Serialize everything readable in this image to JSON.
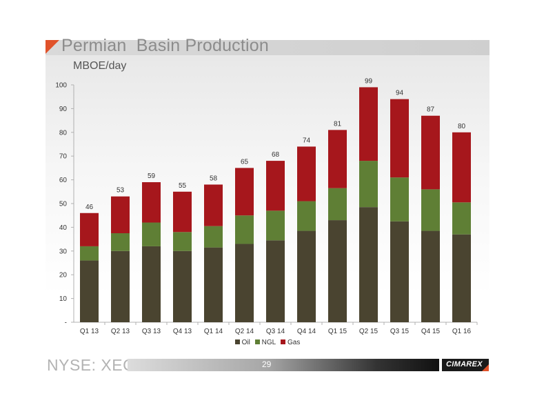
{
  "slide": {
    "title": "Permian  Basin Production",
    "footer_ticker": "NYSE: XEC",
    "page_number": "29",
    "logo_text": "CIMAREX"
  },
  "colors": {
    "oil": "#4a4430",
    "ngl": "#5f7f35",
    "gas": "#a6171c",
    "accent": "#e0522a"
  },
  "chart_data": {
    "type": "bar",
    "stacked": true,
    "title": "MBOE/day",
    "categories": [
      "Q1 13",
      "Q2 13",
      "Q3 13",
      "Q4 13",
      "Q1 14",
      "Q2 14",
      "Q3 14",
      "Q4 14",
      "Q1 15",
      "Q2 15",
      "Q3 15",
      "Q4 15",
      "Q1 16"
    ],
    "series": [
      {
        "name": "Oil",
        "values": [
          26,
          30,
          32,
          30,
          31.5,
          33,
          34.5,
          38.5,
          43,
          48.5,
          42.5,
          38.5,
          37
        ]
      },
      {
        "name": "NGL",
        "values": [
          6,
          7.5,
          10,
          8,
          9,
          12,
          12.5,
          12.5,
          13.5,
          19.5,
          18.5,
          17.5,
          13.5
        ]
      },
      {
        "name": "Gas",
        "values": [
          14,
          15.5,
          17,
          17,
          17.5,
          20,
          21,
          23,
          24.5,
          31,
          33,
          31,
          29.5
        ]
      }
    ],
    "totals": [
      "46",
      "53",
      "59",
      "55",
      "58",
      "65",
      "68",
      "74",
      "81",
      "99",
      "94",
      "87",
      "80"
    ],
    "ylim": [
      0,
      100
    ],
    "yticks": [
      0,
      10,
      20,
      30,
      40,
      50,
      60,
      70,
      80,
      90,
      100
    ],
    "ytick_labels": [
      "-",
      "10",
      "20",
      "30",
      "40",
      "50",
      "60",
      "70",
      "80",
      "90",
      "100"
    ],
    "legend": [
      "Oil",
      "NGL",
      "Gas"
    ],
    "legend_position": "bottom",
    "grid": false
  }
}
